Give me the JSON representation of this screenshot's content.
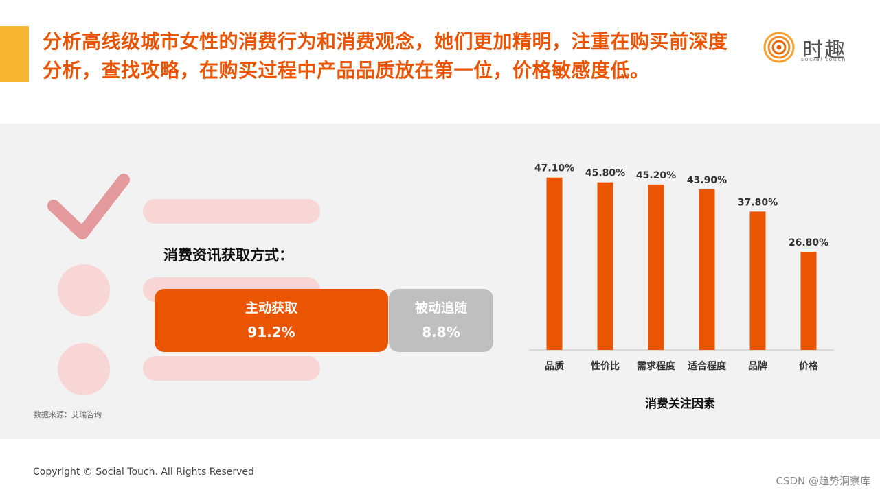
{
  "headline": "分析高线级城市女性的消费行为和消费观念，她们更加精明，注重在购买前深度分析，查找攻略，在购买过程中产品品质放在第一位，价格敏感度低。",
  "logo": {
    "name": "时趣",
    "tagline": "social touch"
  },
  "acquisition": {
    "title": "消费资讯获取方式：",
    "active": {
      "label": "主动获取",
      "value": "91.2%"
    },
    "passive": {
      "label": "被动追随",
      "value": "8.8%"
    }
  },
  "source_note": "数据来源：艾瑞咨询",
  "chart_data": {
    "type": "bar",
    "title": "",
    "xlabel": "消费关注因素",
    "ylabel": "",
    "categories": [
      "品质",
      "性价比",
      "需求程度",
      "适合程度",
      "品牌",
      "价格"
    ],
    "values": [
      47.1,
      45.8,
      45.2,
      43.9,
      37.8,
      26.8
    ],
    "value_labels": [
      "47.10%",
      "45.80%",
      "45.20%",
      "43.90%",
      "37.80%",
      "26.80%"
    ],
    "ylim": [
      0,
      50
    ],
    "grid": false,
    "bar_color": "#ea5504"
  },
  "colors": {
    "accent": "#ea5504",
    "accent_bar": "#f7b733",
    "passive": "#bfbfbf",
    "decor": "#f9d6d6",
    "check": "#e49a9c"
  },
  "footer": {
    "copyright": "Copyright © Social Touch. All Rights Reserved",
    "watermark": "CSDN @趋势洞察库"
  }
}
